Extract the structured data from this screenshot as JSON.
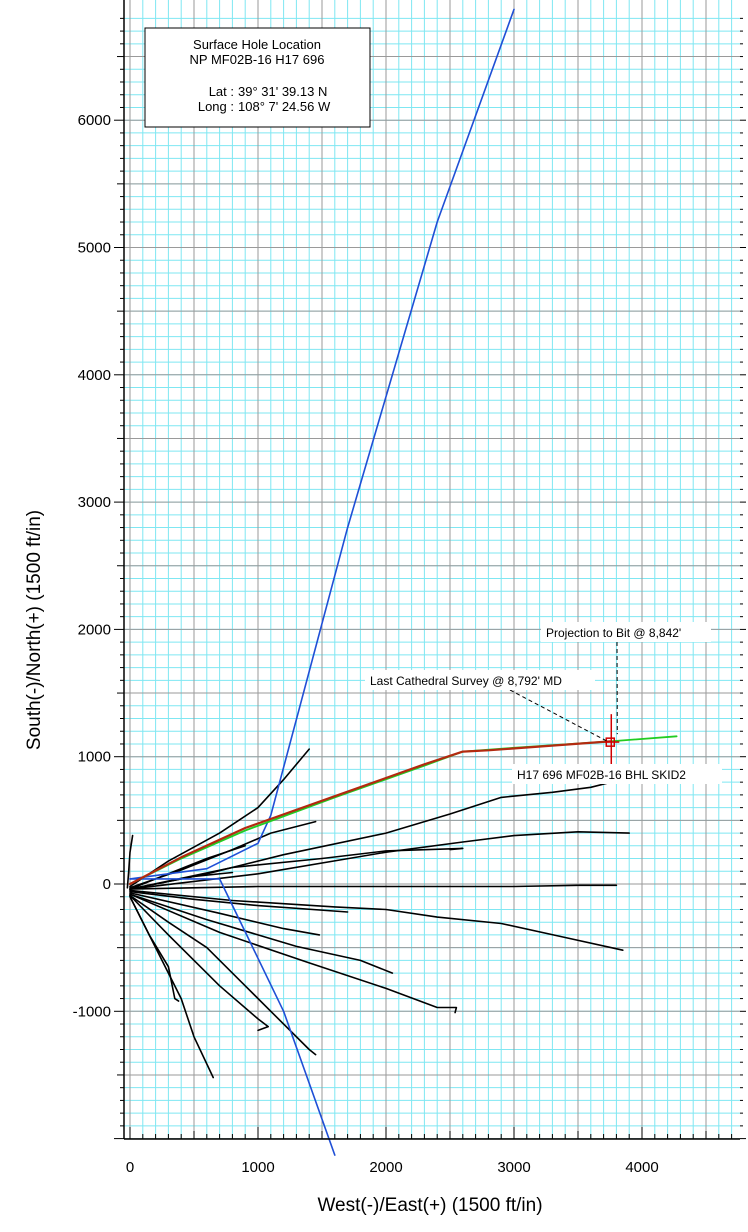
{
  "chart_data": {
    "type": "line",
    "xlabel": "West(-)/East(+) (1500 ft/in)",
    "ylabel": "South(-)/North(+) (1500 ft/in)",
    "xlim": [
      -50,
      4750
    ],
    "ylim": [
      -2130,
      6870
    ],
    "xticks": [
      0,
      1000,
      2000,
      3000,
      4000
    ],
    "yticks": [
      -1000,
      0,
      1000,
      2000,
      3000,
      4000,
      5000,
      6000
    ],
    "grid": true,
    "minor_grid_step": 100,
    "colors": {
      "minor_grid": "#7fe7f2",
      "major_grid": "#9a9a9a",
      "offset_wells": "#000000",
      "lease_line": "#1f4fd6",
      "plan": "#22cc22",
      "actual": "#b32a10",
      "marker": "#d00000"
    },
    "info_box": {
      "title_line1": "Surface Hole Location",
      "title_line2": "NP MF02B-16 H17 696",
      "lat_label": "Lat :",
      "lat_value": "39° 31' 39.13 N",
      "long_label": "Long :",
      "long_value": "108° 7' 24.56 W"
    },
    "annotations": [
      {
        "text": "Projection to Bit @ 8,842'",
        "x": 3760,
        "y": 1130
      },
      {
        "text": "Last Cathedral Survey @ 8,792' MD",
        "x": 3740,
        "y": 1115
      },
      {
        "text": "H17 696 MF02B-16 BHL SKID2",
        "x": 3750,
        "y": 1120
      }
    ],
    "series": [
      {
        "kind": "lease-line",
        "points": [
          [
            0,
            40
          ],
          [
            600,
            120
          ],
          [
            1000,
            320
          ],
          [
            1100,
            540
          ],
          [
            1700,
            2800
          ],
          [
            2400,
            5200
          ],
          [
            3000,
            6870
          ]
        ]
      },
      {
        "kind": "lease-line",
        "points": [
          [
            0,
            40
          ],
          [
            700,
            40
          ],
          [
            1200,
            -1000
          ],
          [
            1600,
            -2130
          ]
        ]
      },
      {
        "kind": "plan",
        "points": [
          [
            0,
            0
          ],
          [
            400,
            200
          ],
          [
            900,
            420
          ],
          [
            1600,
            680
          ],
          [
            2300,
            930
          ],
          [
            2600,
            1040
          ],
          [
            3000,
            1070
          ],
          [
            3750,
            1120
          ],
          [
            4270,
            1160
          ]
        ]
      },
      {
        "kind": "actual",
        "points": [
          [
            0,
            0
          ],
          [
            400,
            210
          ],
          [
            900,
            440
          ],
          [
            1600,
            690
          ],
          [
            2300,
            940
          ],
          [
            2600,
            1040
          ],
          [
            2800,
            1050
          ],
          [
            3750,
            1120
          ]
        ]
      },
      {
        "kind": "offset-well",
        "points": [
          [
            -20,
            -30
          ],
          [
            -10,
            100
          ],
          [
            0,
            250
          ],
          [
            20,
            380
          ]
        ]
      },
      {
        "kind": "offset-well",
        "points": [
          [
            0,
            -20
          ],
          [
            300,
            180
          ],
          [
            700,
            400
          ],
          [
            1000,
            600
          ],
          [
            1200,
            820
          ],
          [
            1400,
            1060
          ]
        ]
      },
      {
        "kind": "offset-well",
        "points": [
          [
            0,
            -30
          ],
          [
            400,
            110
          ],
          [
            800,
            270
          ],
          [
            1100,
            400
          ],
          [
            1450,
            490
          ]
        ]
      },
      {
        "kind": "offset-well",
        "points": [
          [
            0,
            -40
          ],
          [
            300,
            80
          ],
          [
            600,
            200
          ],
          [
            900,
            300
          ]
        ]
      },
      {
        "kind": "offset-well",
        "points": [
          [
            0,
            -40
          ],
          [
            200,
            0
          ],
          [
            500,
            60
          ],
          [
            800,
            90
          ]
        ]
      },
      {
        "kind": "offset-well",
        "points": [
          [
            0,
            -40
          ],
          [
            600,
            80
          ],
          [
            1200,
            230
          ],
          [
            2000,
            400
          ],
          [
            2500,
            550
          ],
          [
            2900,
            680
          ],
          [
            3300,
            720
          ],
          [
            3600,
            760
          ],
          [
            3800,
            810
          ]
        ]
      },
      {
        "kind": "offset-well",
        "points": [
          [
            0,
            -40
          ],
          [
            800,
            130
          ],
          [
            1500,
            200
          ],
          [
            2000,
            260
          ],
          [
            2600,
            280
          ],
          [
            2500,
            270
          ]
        ]
      },
      {
        "kind": "offset-well",
        "points": [
          [
            0,
            -40
          ],
          [
            1000,
            80
          ],
          [
            2000,
            250
          ],
          [
            2600,
            330
          ],
          [
            3000,
            380
          ],
          [
            3500,
            410
          ],
          [
            3900,
            400
          ]
        ]
      },
      {
        "kind": "offset-well",
        "points": [
          [
            0,
            -40
          ],
          [
            1000,
            -20
          ],
          [
            2000,
            -20
          ],
          [
            3000,
            -20
          ],
          [
            3500,
            -10
          ],
          [
            3800,
            -10
          ]
        ]
      },
      {
        "kind": "offset-well",
        "points": [
          [
            0,
            -50
          ],
          [
            800,
            -130
          ],
          [
            1600,
            -180
          ],
          [
            2000,
            -200
          ],
          [
            2400,
            -260
          ],
          [
            2900,
            -310
          ],
          [
            3400,
            -420
          ],
          [
            3850,
            -520
          ]
        ]
      },
      {
        "kind": "offset-well",
        "points": [
          [
            0,
            -60
          ],
          [
            500,
            -120
          ],
          [
            1000,
            -170
          ],
          [
            1700,
            -220
          ]
        ]
      },
      {
        "kind": "offset-well",
        "points": [
          [
            0,
            -70
          ],
          [
            700,
            -230
          ],
          [
            1200,
            -350
          ],
          [
            1480,
            -400
          ]
        ]
      },
      {
        "kind": "offset-well",
        "points": [
          [
            0,
            -80
          ],
          [
            600,
            -280
          ],
          [
            1300,
            -490
          ],
          [
            1800,
            -600
          ],
          [
            2050,
            -700
          ]
        ]
      },
      {
        "kind": "offset-well",
        "points": [
          [
            0,
            -80
          ],
          [
            700,
            -380
          ],
          [
            1400,
            -620
          ],
          [
            2000,
            -820
          ],
          [
            2400,
            -970
          ],
          [
            2550,
            -970
          ],
          [
            2540,
            -1010
          ]
        ]
      },
      {
        "kind": "offset-well",
        "points": [
          [
            0,
            -90
          ],
          [
            300,
            -300
          ],
          [
            600,
            -500
          ],
          [
            900,
            -800
          ],
          [
            1100,
            -1000
          ],
          [
            1400,
            -1300
          ],
          [
            1450,
            -1340
          ]
        ]
      },
      {
        "kind": "offset-well",
        "points": [
          [
            0,
            -90
          ],
          [
            300,
            -400
          ],
          [
            700,
            -800
          ],
          [
            1000,
            -1060
          ],
          [
            1080,
            -1120
          ],
          [
            1000,
            -1150
          ]
        ]
      },
      {
        "kind": "offset-well",
        "points": [
          [
            0,
            -100
          ],
          [
            150,
            -400
          ],
          [
            300,
            -650
          ],
          [
            350,
            -900
          ],
          [
            380,
            -920
          ]
        ]
      },
      {
        "kind": "offset-well",
        "points": [
          [
            0,
            -100
          ],
          [
            200,
            -500
          ],
          [
            400,
            -900
          ],
          [
            500,
            -1200
          ],
          [
            650,
            -1520
          ]
        ]
      }
    ]
  }
}
